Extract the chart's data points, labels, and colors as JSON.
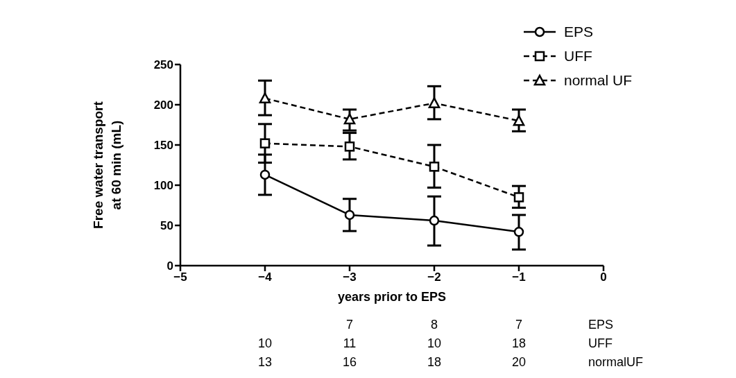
{
  "chart_data": {
    "type": "line",
    "xlabel": "years prior to EPS",
    "ylabel": "Free water transport\nat 60 min (mL)",
    "x": [
      -4,
      -3,
      -2,
      -1
    ],
    "series": [
      {
        "name": "EPS",
        "color": "#000000",
        "marker": "circle",
        "line_style": "solid",
        "values": [
          113,
          63,
          56,
          42
        ],
        "errors": [
          [
            88,
            138
          ],
          [
            43,
            83
          ],
          [
            25,
            86
          ],
          [
            20,
            63
          ]
        ]
      },
      {
        "name": "UFF",
        "color": "#000000",
        "marker": "square",
        "line_style": "dashed",
        "values": [
          152,
          148,
          123,
          85
        ],
        "errors": [
          [
            128,
            176
          ],
          [
            132,
            165
          ],
          [
            97,
            150
          ],
          [
            72,
            99
          ]
        ]
      },
      {
        "name": "normal UF",
        "color": "#000000",
        "marker": "triangle",
        "line_style": "dashed",
        "values": [
          208,
          182,
          202,
          180
        ],
        "errors": [
          [
            187,
            230
          ],
          [
            168,
            194
          ],
          [
            182,
            223
          ],
          [
            167,
            194
          ]
        ]
      }
    ],
    "xlim": [
      -5,
      0
    ],
    "xticks": [
      -5,
      -4,
      -3,
      -2,
      -1,
      0
    ],
    "ylim": [
      0,
      250
    ],
    "yticks": [
      0,
      50,
      100,
      150,
      200,
      250
    ],
    "legend": "top right",
    "annotations": [
      "7 8 7 EPS",
      "10 11 10 18 UFF",
      "13 16 18 20 normalUF"
    ]
  }
}
